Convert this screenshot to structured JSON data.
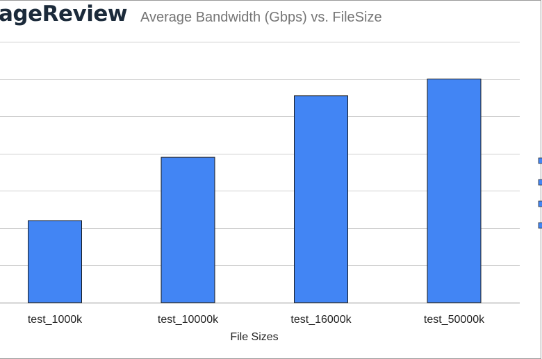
{
  "logo_text": "ageReview",
  "chart_data": {
    "type": "bar",
    "title": "Average Bandwidth (Gbps) vs. FileSize",
    "xlabel": "File Sizes",
    "ylabel": "",
    "categories": [
      "test_1000k",
      "test_10000k",
      "test_16000k",
      "test_50000k"
    ],
    "values": [
      2.2,
      3.9,
      5.55,
      6.0
    ],
    "ylim": [
      0,
      7
    ],
    "grid": true,
    "bar_color": "#4285f4",
    "legend": {
      "placement": "right",
      "entries": 4,
      "color": "#4285f4"
    }
  }
}
